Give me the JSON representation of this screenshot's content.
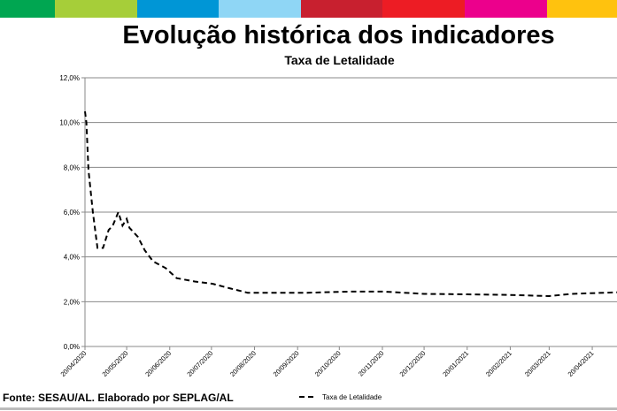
{
  "header": {
    "title": "Evolução histórica dos indicadores",
    "stripe_colors": [
      "#00a651",
      "#a6ce39",
      "#0096d6",
      "#8fd6f5",
      "#c8202f",
      "#ed1c24",
      "#ec008c",
      "#ffc20e"
    ]
  },
  "footer": {
    "source": "Fonte: SESAU/AL. Elaborado por SEPLAG/AL"
  },
  "chart_data": {
    "type": "line",
    "title": "Taxa de Letalidade",
    "xlabel": "",
    "ylabel": "",
    "ylim": [
      0,
      12
    ],
    "y_ticks": [
      "0,0%",
      "2,0%",
      "4,0%",
      "6,0%",
      "8,0%",
      "10,0%",
      "12,0%"
    ],
    "x_ticks": [
      {
        "label": "20/04/2020",
        "day": 0
      },
      {
        "label": "20/05/2020",
        "day": 30
      },
      {
        "label": "20/06/2020",
        "day": 61
      },
      {
        "label": "20/07/2020",
        "day": 91
      },
      {
        "label": "20/08/2020",
        "day": 122
      },
      {
        "label": "20/09/2020",
        "day": 153
      },
      {
        "label": "20/10/2020",
        "day": 183
      },
      {
        "label": "20/11/2020",
        "day": 214
      },
      {
        "label": "20/12/2020",
        "day": 244
      },
      {
        "label": "20/01/2021",
        "day": 275
      },
      {
        "label": "20/02/2021",
        "day": 306
      },
      {
        "label": "20/03/2021",
        "day": 334
      },
      {
        "label": "20/04/2021",
        "day": 365
      }
    ],
    "xlim": [
      0,
      383
    ],
    "grid": true,
    "legend_position": "bottom",
    "series": [
      {
        "name": "Taxa de Letalidade",
        "style": "dashed",
        "color": "#000000",
        "x": [
          0,
          1,
          2.5,
          5.7,
          9,
          13,
          17,
          20,
          24,
          27,
          30,
          32,
          38,
          43,
          49,
          58,
          66,
          79,
          92,
          104,
          117,
          135,
          160,
          190,
          215,
          244,
          275,
          306,
          334,
          350,
          383
        ],
        "y": [
          10.5,
          10.0,
          7.9,
          6.0,
          4.4,
          4.4,
          5.2,
          5.4,
          6.0,
          5.4,
          5.7,
          5.3,
          4.9,
          4.3,
          3.8,
          3.5,
          3.05,
          2.9,
          2.8,
          2.6,
          2.4,
          2.4,
          2.4,
          2.45,
          2.45,
          2.35,
          2.33,
          2.3,
          2.25,
          2.35,
          2.42
        ]
      }
    ]
  }
}
